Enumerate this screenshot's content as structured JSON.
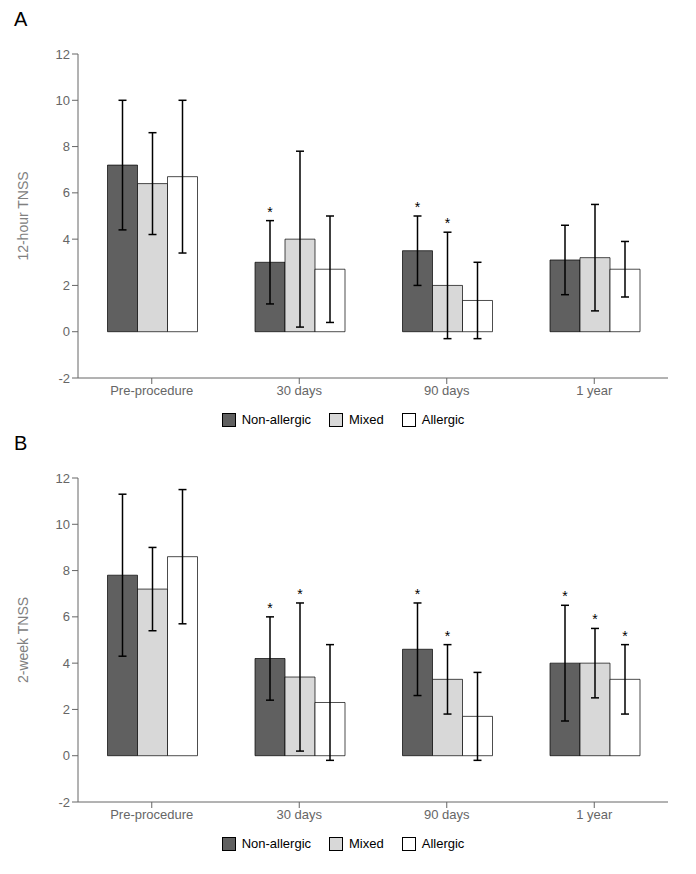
{
  "chart_data": [
    {
      "type": "bar",
      "title": "A",
      "ylabel": "12-hour TNSS",
      "categories": [
        "Pre-procedure",
        "30 days",
        "90 days",
        "1 year"
      ],
      "series": [
        {
          "name": "Non-allergic",
          "color": "#606060",
          "values": [
            7.2,
            3.0,
            3.5,
            3.1
          ],
          "errors": [
            2.8,
            1.8,
            1.5,
            1.5
          ],
          "annotations": [
            null,
            "*",
            "*",
            null
          ]
        },
        {
          "name": "Mixed",
          "color": "#d8d8d8",
          "values": [
            6.4,
            4.0,
            2.0,
            3.2
          ],
          "errors": [
            2.2,
            3.8,
            2.3,
            2.3
          ],
          "annotations": [
            null,
            null,
            "*",
            null
          ]
        },
        {
          "name": "Allergic",
          "color": "#ffffff",
          "values": [
            6.7,
            2.7,
            1.35,
            2.7
          ],
          "errors": [
            3.3,
            2.3,
            1.65,
            1.2
          ],
          "annotations": [
            null,
            null,
            null,
            null
          ]
        }
      ],
      "ylim": [
        -2,
        12
      ],
      "yticks": [
        -2,
        0,
        2,
        4,
        6,
        8,
        10,
        12
      ],
      "grid": false,
      "legend": "bottom"
    },
    {
      "type": "bar",
      "title": "B",
      "ylabel": "2-week TNSS",
      "categories": [
        "Pre-procedure",
        "30 days",
        "90 days",
        "1 year"
      ],
      "series": [
        {
          "name": "Non-allergic",
          "color": "#606060",
          "values": [
            7.8,
            4.2,
            4.6,
            4.0
          ],
          "errors": [
            3.5,
            1.8,
            2.0,
            2.5
          ],
          "annotations": [
            null,
            "*",
            "*",
            "*"
          ]
        },
        {
          "name": "Mixed",
          "color": "#d8d8d8",
          "values": [
            7.2,
            3.4,
            3.3,
            4.0
          ],
          "errors": [
            1.8,
            3.2,
            1.5,
            1.5
          ],
          "annotations": [
            null,
            "*",
            "*",
            "*"
          ]
        },
        {
          "name": "Allergic",
          "color": "#ffffff",
          "values": [
            8.6,
            2.3,
            1.7,
            3.3
          ],
          "errors": [
            2.9,
            2.5,
            1.9,
            1.5
          ],
          "annotations": [
            null,
            null,
            null,
            "*"
          ]
        }
      ],
      "ylim": [
        -2,
        12
      ],
      "yticks": [
        -2,
        0,
        2,
        4,
        6,
        8,
        10,
        12
      ],
      "grid": false,
      "legend": "bottom"
    }
  ]
}
